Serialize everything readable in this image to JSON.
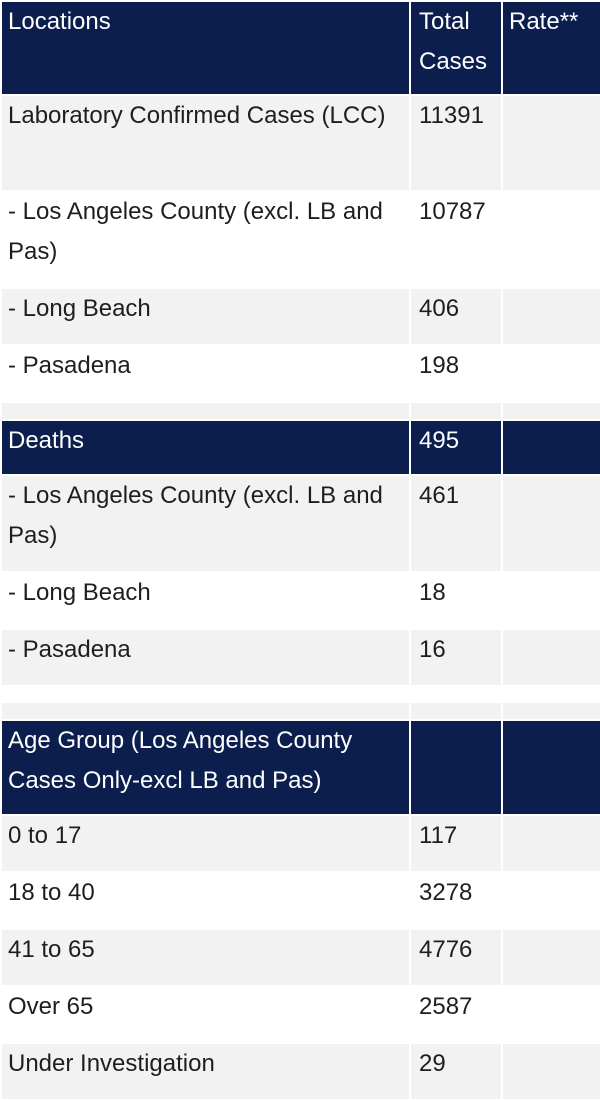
{
  "header": {
    "locations": "Locations",
    "total_cases": "Total Cases",
    "rate": "Rate**"
  },
  "cases": [
    {
      "label": "Laboratory Confirmed Cases (LCC)",
      "total": "11391",
      "rate": ""
    },
    {
      "label": "- Los Angeles County (excl. LB and Pas)",
      "total": "10787",
      "rate": ""
    },
    {
      "label": "- Long Beach",
      "total": "406",
      "rate": ""
    },
    {
      "label": "- Pasadena",
      "total": "198",
      "rate": ""
    }
  ],
  "deaths_header": {
    "label": "Deaths",
    "total": "495",
    "rate": ""
  },
  "deaths": [
    {
      "label": "- Los Angeles County (excl. LB and Pas)",
      "total": "461",
      "rate": ""
    },
    {
      "label": "- Long Beach",
      "total": "18",
      "rate": ""
    },
    {
      "label": "- Pasadena",
      "total": "16",
      "rate": ""
    }
  ],
  "age_header": {
    "label": "Age Group (Los Angeles County Cases Only-excl LB and Pas)",
    "total": "",
    "rate": ""
  },
  "age_groups": [
    {
      "label": "0 to 17",
      "total": "117",
      "rate": ""
    },
    {
      "label": "18 to 40",
      "total": "3278",
      "rate": ""
    },
    {
      "label": "41 to 65",
      "total": "4776",
      "rate": ""
    },
    {
      "label": "Over 65",
      "total": "2587",
      "rate": ""
    },
    {
      "label": "Under Investigation",
      "total": "29",
      "rate": ""
    }
  ],
  "colors": {
    "header_bg": "#0b1e4d",
    "row_gray": "#f2f2f2",
    "row_white": "#ffffff"
  }
}
